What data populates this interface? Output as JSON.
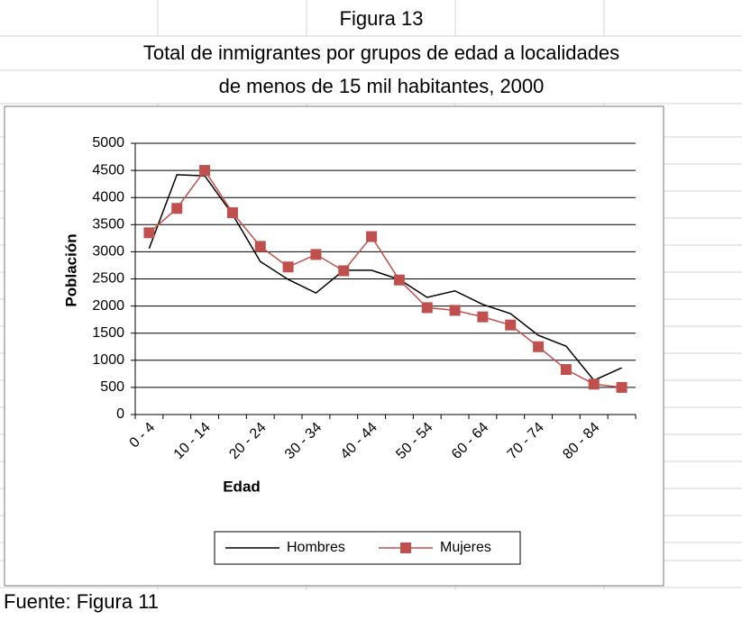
{
  "sheet": {
    "cells": [
      "Figura 13",
      "Total de inmigrantes por grupos de edad a localidades",
      "de menos de 15 mil habitantes, 2000"
    ],
    "footer": "Fuente: Figura 11"
  },
  "chart_data": {
    "type": "line",
    "x_label": "Edad",
    "y_label": "Población",
    "categories": [
      "0 - 4",
      null,
      "10 - 14",
      null,
      "20 - 24",
      null,
      "30 - 34",
      null,
      "40 - 44",
      null,
      "50 - 54",
      null,
      "60 - 64",
      null,
      "70 - 74",
      null,
      "80 - 84",
      null
    ],
    "series": [
      {
        "name": "Hombres",
        "color": "#000000",
        "marker": false,
        "values": [
          3060,
          4420,
          4400,
          3690,
          2820,
          2490,
          2240,
          2660,
          2660,
          2490,
          2160,
          2280,
          2030,
          1860,
          1460,
          1260,
          630,
          860
        ]
      },
      {
        "name": "Mujeres",
        "color": "#c0504d",
        "marker": true,
        "values": [
          3350,
          3800,
          4500,
          3720,
          3100,
          2720,
          2950,
          2650,
          3280,
          2480,
          1970,
          1920,
          1800,
          1650,
          1250,
          830,
          560,
          500
        ]
      }
    ],
    "ylim": [
      0,
      5000
    ],
    "yticks": [
      0,
      500,
      1000,
      1500,
      2000,
      2500,
      3000,
      3500,
      4000,
      4500,
      5000
    ],
    "grid": true,
    "legend": "bottom"
  }
}
